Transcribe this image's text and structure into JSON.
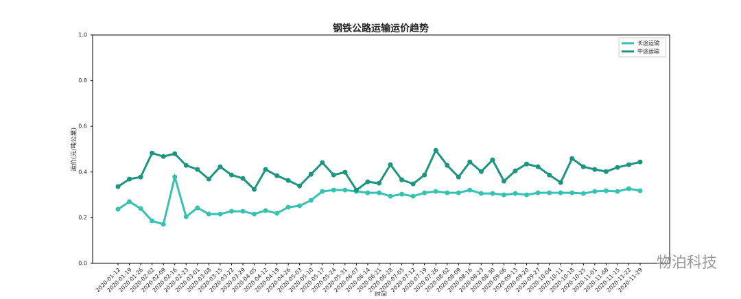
{
  "chart_data": {
    "type": "line",
    "title": "钢铁公路运输运价趋势",
    "x_label": "时间",
    "y_label": "运价(元/吨公里)",
    "watermark": "物泊科技",
    "legend_position": "upper right",
    "categories": [
      "2020-01-12",
      "2020-01-19",
      "2020-01-26",
      "2020-02-02",
      "2020-02-09",
      "2020-02-16",
      "2020-02-23",
      "2020-03-01",
      "2020-03-08",
      "2020-03-15",
      "2020-03-22",
      "2020-03-29",
      "2020-04-05",
      "2020-04-12",
      "2020-04-19",
      "2020-04-26",
      "2020-05-03",
      "2020-05-10",
      "2020-05-17",
      "2020-05-24",
      "2020-05-31",
      "2020-06-07",
      "2020-06-14",
      "2020-06-21",
      "2020-06-28",
      "2020-07-05",
      "2020-07-12",
      "2020-07-19",
      "2020-07-26",
      "2020-08-02",
      "2020-08-09",
      "2020-08-16",
      "2020-08-23",
      "2020-08-30",
      "2020-09-06",
      "2020-09-13",
      "2020-09-20",
      "2020-09-27",
      "2020-10-04",
      "2020-10-11",
      "2020-10-18",
      "2020-10-25",
      "2020-11-01",
      "2020-11-08",
      "2020-11-15",
      "2020-11-22",
      "2020-11-29"
    ],
    "series": [
      {
        "name": "长途运输",
        "color": "#36c2b2",
        "values": [
          0.237,
          0.27,
          0.24,
          0.186,
          0.171,
          0.378,
          0.204,
          0.243,
          0.216,
          0.216,
          0.228,
          0.228,
          0.216,
          0.231,
          0.219,
          0.246,
          0.252,
          0.276,
          0.315,
          0.321,
          0.321,
          0.315,
          0.309,
          0.309,
          0.294,
          0.303,
          0.294,
          0.309,
          0.315,
          0.309,
          0.309,
          0.321,
          0.306,
          0.306,
          0.3,
          0.306,
          0.3,
          0.309,
          0.309,
          0.309,
          0.309,
          0.306,
          0.315,
          0.318,
          0.315,
          0.327,
          0.318
        ]
      },
      {
        "name": "中途运输",
        "color": "#1b9480",
        "values": [
          0.336,
          0.369,
          0.378,
          0.483,
          0.468,
          0.48,
          0.429,
          0.411,
          0.369,
          0.423,
          0.387,
          0.372,
          0.324,
          0.411,
          0.384,
          0.363,
          0.339,
          0.39,
          0.441,
          0.387,
          0.399,
          0.321,
          0.357,
          0.351,
          0.432,
          0.366,
          0.348,
          0.387,
          0.495,
          0.429,
          0.378,
          0.444,
          0.402,
          0.453,
          0.36,
          0.405,
          0.435,
          0.423,
          0.387,
          0.354,
          0.459,
          0.423,
          0.411,
          0.402,
          0.42,
          0.432,
          0.444
        ]
      }
    ],
    "ylim": [
      0,
      1
    ],
    "yticks": [
      {
        "value": 0,
        "label": "0.0"
      },
      0.2,
      0.4,
      0.6,
      0.8,
      {
        "value": 1,
        "label": "1.0"
      }
    ]
  }
}
